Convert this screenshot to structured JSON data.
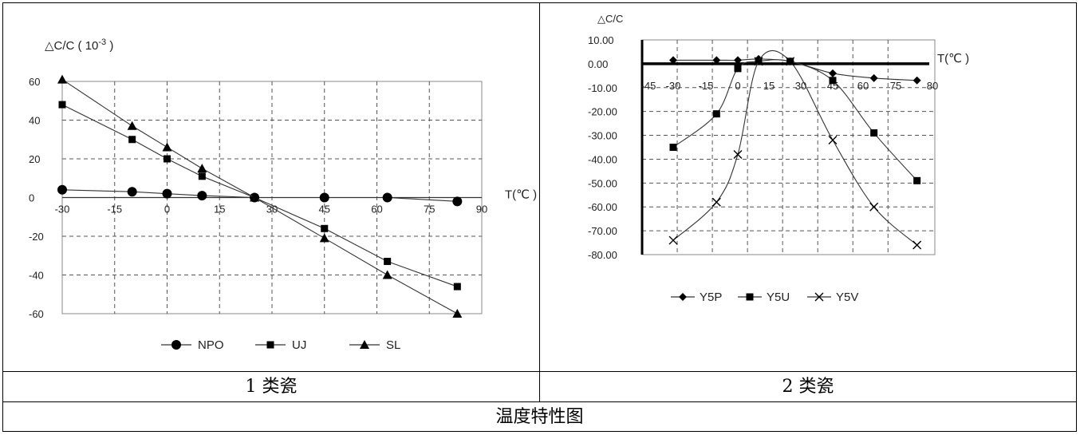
{
  "captions": {
    "left": "1 类瓷",
    "right": "2 类瓷",
    "bottom": "温度特性图"
  },
  "chart_data": [
    {
      "type": "line",
      "ylabel": "△C/C ( 10",
      "ylabel_sup": "-3",
      "ylabel_end": ")",
      "xlabel": "T(℃ )",
      "xlim": [
        -30,
        90
      ],
      "ylim": [
        -60,
        60
      ],
      "xticks": [
        "-30",
        "-15",
        "0",
        "15",
        "30",
        "45",
        "60",
        "75",
        "90"
      ],
      "yticks": [
        "60",
        "40",
        "20",
        "0",
        "-20",
        "-40",
        "-60"
      ],
      "grid": true,
      "legend_position": "bottom",
      "series": [
        {
          "name": "NPO",
          "marker": "circle",
          "x": [
            -30,
            -10,
            0,
            10,
            25,
            45,
            63,
            83
          ],
          "y": [
            4,
            3,
            2,
            1,
            0,
            0,
            0,
            -2
          ]
        },
        {
          "name": "UJ",
          "marker": "square",
          "x": [
            -30,
            -10,
            0,
            10,
            25,
            45,
            63,
            83
          ],
          "y": [
            48,
            30,
            20,
            11,
            0,
            -16,
            -33,
            -46
          ]
        },
        {
          "name": "SL",
          "marker": "triangle",
          "x": [
            -30,
            -10,
            0,
            10,
            25,
            45,
            63,
            83
          ],
          "y": [
            61,
            37,
            26,
            15,
            0,
            -21,
            -40,
            -60
          ]
        }
      ]
    },
    {
      "type": "line",
      "ylabel": "△C/C",
      "xlabel": "T(℃ )",
      "xlim": [
        -45,
        80
      ],
      "ylim": [
        -80,
        10
      ],
      "xticks": [
        "-45",
        "-30",
        "-15",
        "0",
        "15",
        "30",
        "45",
        "60",
        "75",
        "80"
      ],
      "yticks": [
        "10.00",
        "0.00",
        "-10.00",
        "-20.00",
        "-30.00",
        "-40.00",
        "-50.00",
        "-60.00",
        "-70.00",
        "-80.00"
      ],
      "grid": true,
      "legend_position": "bottom",
      "series": [
        {
          "name": "Y5P",
          "marker": "diamond",
          "x": [
            -30,
            -10,
            0,
            10,
            25,
            45,
            65,
            85
          ],
          "y": [
            1.5,
            1.5,
            1.5,
            2,
            1,
            -4,
            -6,
            -7
          ]
        },
        {
          "name": "Y5U",
          "marker": "square",
          "x": [
            -30,
            -10,
            0,
            10,
            25,
            45,
            65,
            85
          ],
          "y": [
            -35,
            -21,
            -2,
            1,
            1,
            -7,
            -29,
            -49
          ]
        },
        {
          "name": "Y5V",
          "marker": "cross",
          "x": [
            -30,
            -10,
            0,
            10,
            25,
            45,
            65,
            85
          ],
          "y": [
            -74,
            -58,
            -38,
            1,
            1,
            -32,
            -60,
            -76
          ]
        }
      ]
    }
  ]
}
